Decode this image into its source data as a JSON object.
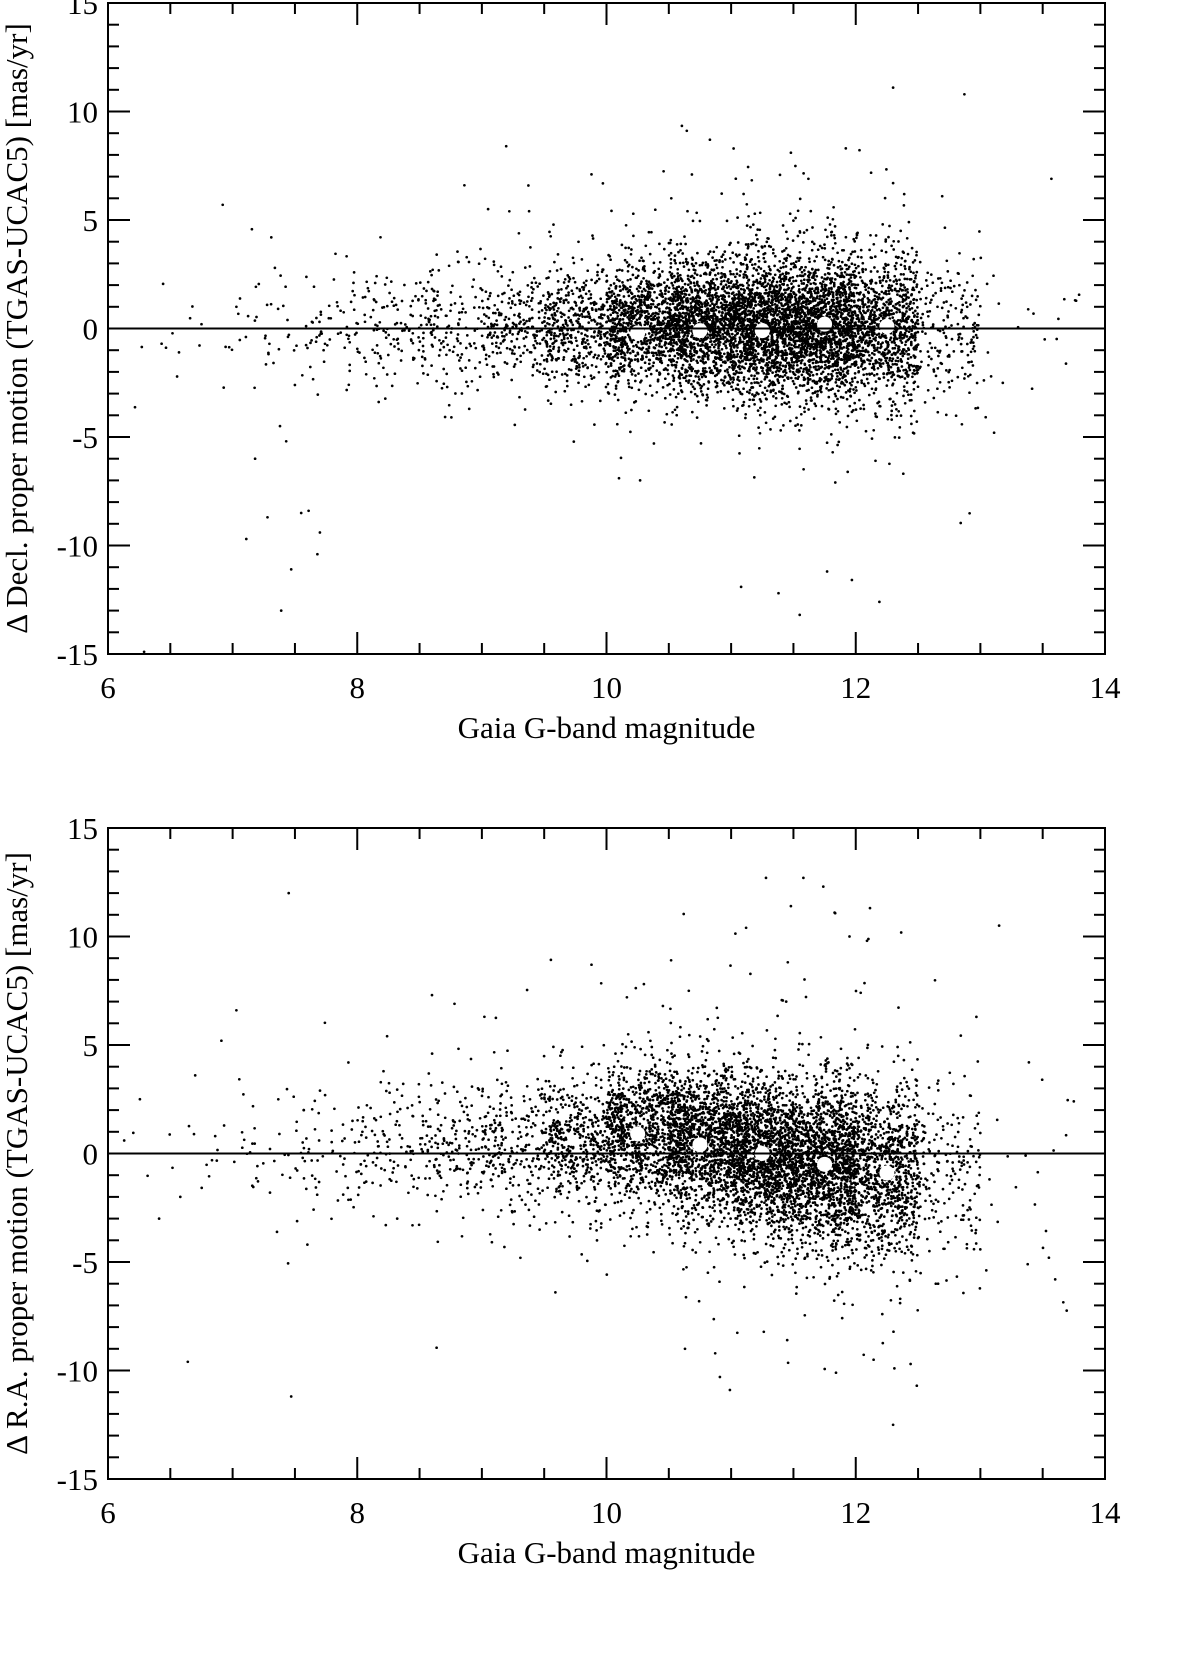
{
  "chart_data": [
    {
      "type": "scatter",
      "xlabel": "Gaia G-band magnitude",
      "ylabel": "Δ Decl. proper motion (TGAS-UCAC5) [mas/yr]",
      "xlim": [
        6,
        14
      ],
      "ylim": [
        -15,
        15
      ],
      "x_ticks": [
        "6",
        "8",
        "10",
        "12",
        "14"
      ],
      "y_ticks": [
        "-15",
        "-10",
        "-5",
        "0",
        "5",
        "10",
        "15"
      ],
      "zero_line": 0,
      "grid": false,
      "series": [
        {
          "marker": "small black dots",
          "x": [
            6.29,
            6.57,
            6.75,
            6.92,
            7.03,
            7.11,
            7.18,
            7.28,
            7.31,
            7.38,
            7.39,
            7.43,
            7.47,
            7.55,
            7.61,
            7.68,
            7.7,
            7.73,
            8.86,
            9.05,
            9.22,
            9.88,
            10.1,
            10.27,
            10.38,
            10.52,
            10.83,
            11.1,
            11.38,
            11.48,
            11.55,
            11.62,
            11.77,
            11.92,
            12.19,
            12.3,
            12.3,
            12.46,
            13.11,
            13.57,
            13.76
          ],
          "y": [
            -14.9,
            -1.1,
            0.2,
            5.7,
            1.0,
            -9.7,
            -6.0,
            -8.7,
            4.2,
            -4.5,
            -13.0,
            -5.2,
            -11.1,
            -8.5,
            -8.4,
            -10.4,
            -9.4,
            -1.0,
            6.6,
            5.5,
            5.4,
            7.1,
            -6.9,
            -7.0,
            -5.3,
            6.0,
            8.7,
            6.2,
            -12.2,
            8.1,
            -13.2,
            6.9,
            -11.2,
            8.3,
            -12.6,
            11.1,
            6.7,
            -4.8,
            -4.8,
            6.9,
            1.3
          ]
        },
        {
          "name": "",
          "marker": "white circles",
          "x": [
            10.25,
            10.75,
            11.25,
            11.75,
            12.25
          ],
          "y": [
            -0.2,
            -0.1,
            -0.1,
            0.2,
            0.1
          ]
        }
      ]
    },
    {
      "type": "scatter",
      "xlabel": "Gaia G-band magnitude",
      "ylabel": "Δ R.A. proper motion (TGAS-UCAC5) [mas/yr]",
      "xlim": [
        6,
        14
      ],
      "ylim": [
        -15,
        15
      ],
      "x_ticks": [
        "6",
        "8",
        "10",
        "12",
        "14"
      ],
      "y_ticks": [
        "-15",
        "-10",
        "-5",
        "0",
        "5",
        "10",
        "15"
      ],
      "zero_line": 0,
      "grid": false,
      "series": [
        {
          "marker": "small black dots",
          "x": [
            6.13,
            6.41,
            6.58,
            6.64,
            6.7,
            6.86,
            6.91,
            7.03,
            7.3,
            7.45,
            7.47,
            7.6,
            8.6,
            8.78,
            9.02,
            9.59,
            9.88,
            10.63,
            10.66,
            10.91,
            10.99,
            11.12,
            11.28,
            11.45,
            11.48,
            11.58,
            11.74,
            11.95,
            12.09,
            12.3,
            12.44,
            12.49,
            13.15,
            13.55,
            13.6,
            13.75
          ],
          "y": [
            0.6,
            -3.0,
            -2.0,
            -9.6,
            3.6,
            0.8,
            5.2,
            6.6,
            -1.8,
            12.0,
            -11.2,
            -4.2,
            7.3,
            6.9,
            6.3,
            -6.4,
            8.7,
            -9.0,
            7.5,
            -10.3,
            -10.9,
            10.4,
            12.7,
            -8.6,
            11.4,
            12.7,
            12.3,
            10.0,
            9.8,
            -12.5,
            -9.7,
            -10.7,
            10.5,
            -4.8,
            -5.8,
            2.4
          ]
        },
        {
          "name": "",
          "marker": "white circles",
          "x": [
            10.25,
            10.75,
            11.25,
            11.75,
            12.25
          ],
          "y": [
            0.9,
            0.4,
            0.0,
            -0.5,
            -0.9
          ]
        }
      ]
    }
  ]
}
